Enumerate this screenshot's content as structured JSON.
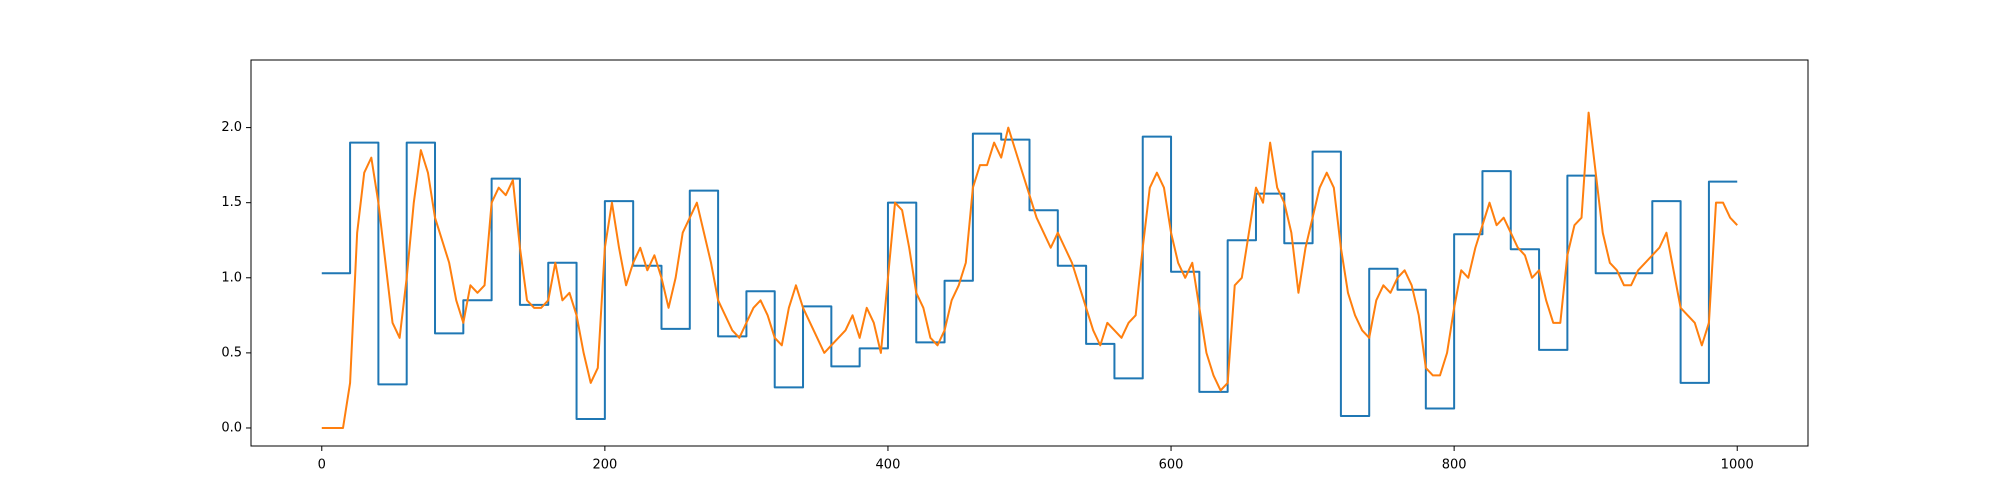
{
  "chart_data": {
    "type": "line",
    "series": [
      {
        "color": "#1f77b4",
        "drawstyle": "steps-post",
        "x": [
          0,
          20,
          40,
          60,
          80,
          100,
          120,
          140,
          160,
          180,
          200,
          220,
          240,
          260,
          280,
          300,
          320,
          340,
          360,
          380,
          400,
          420,
          440,
          460,
          480,
          500,
          520,
          540,
          560,
          580,
          600,
          620,
          640,
          660,
          680,
          700,
          720,
          740,
          760,
          780,
          800,
          820,
          840,
          860,
          880,
          900,
          920,
          940,
          960,
          980,
          1000
        ],
        "values": [
          1.03,
          1.9,
          0.29,
          1.9,
          0.63,
          0.85,
          1.66,
          0.82,
          1.1,
          0.06,
          1.51,
          1.08,
          0.66,
          1.58,
          0.61,
          0.91,
          0.27,
          0.81,
          0.41,
          0.53,
          1.5,
          0.57,
          0.98,
          1.96,
          1.92,
          1.45,
          1.08,
          0.56,
          0.33,
          1.94,
          1.04,
          0.24,
          1.25,
          1.56,
          1.23,
          1.84,
          0.08,
          1.06,
          0.92,
          0.13,
          1.29,
          1.71,
          1.19,
          0.52,
          1.68,
          1.03,
          1.03,
          1.51,
          0.3,
          1.64,
          1.64
        ]
      },
      {
        "color": "#ff7f0e",
        "drawstyle": "default",
        "x": [
          0,
          5,
          10,
          15,
          20,
          25,
          30,
          35,
          40,
          45,
          50,
          55,
          60,
          65,
          70,
          75,
          80,
          85,
          90,
          95,
          100,
          105,
          110,
          115,
          120,
          125,
          130,
          135,
          140,
          145,
          150,
          155,
          160,
          165,
          170,
          175,
          180,
          185,
          190,
          195,
          200,
          205,
          210,
          215,
          220,
          225,
          230,
          235,
          240,
          245,
          250,
          255,
          260,
          265,
          270,
          275,
          280,
          285,
          290,
          295,
          300,
          305,
          310,
          315,
          320,
          325,
          330,
          335,
          340,
          345,
          350,
          355,
          360,
          365,
          370,
          375,
          380,
          385,
          390,
          395,
          400,
          405,
          410,
          415,
          420,
          425,
          430,
          435,
          440,
          445,
          450,
          455,
          460,
          465,
          470,
          475,
          480,
          485,
          490,
          495,
          500,
          505,
          510,
          515,
          520,
          525,
          530,
          535,
          540,
          545,
          550,
          555,
          560,
          565,
          570,
          575,
          580,
          585,
          590,
          595,
          600,
          605,
          610,
          615,
          620,
          625,
          630,
          635,
          640,
          645,
          650,
          655,
          660,
          665,
          670,
          675,
          680,
          685,
          690,
          695,
          700,
          705,
          710,
          715,
          720,
          725,
          730,
          735,
          740,
          745,
          750,
          755,
          760,
          765,
          770,
          775,
          780,
          785,
          790,
          795,
          800,
          805,
          810,
          815,
          820,
          825,
          830,
          835,
          840,
          845,
          850,
          855,
          860,
          865,
          870,
          875,
          880,
          885,
          890,
          895,
          900,
          905,
          910,
          915,
          920,
          925,
          930,
          935,
          940,
          945,
          950,
          955,
          960,
          965,
          970,
          975,
          980,
          985,
          990,
          995,
          1000
        ],
        "values": [
          0,
          0,
          0,
          0,
          0.3,
          1.3,
          1.7,
          1.8,
          1.5,
          1.1,
          0.7,
          0.6,
          1.0,
          1.5,
          1.85,
          1.7,
          1.4,
          1.25,
          1.1,
          0.85,
          0.7,
          0.95,
          0.9,
          0.95,
          1.5,
          1.6,
          1.55,
          1.65,
          1.2,
          0.85,
          0.8,
          0.8,
          0.85,
          1.1,
          0.85,
          0.9,
          0.75,
          0.5,
          0.3,
          0.4,
          1.2,
          1.5,
          1.2,
          0.95,
          1.1,
          1.2,
          1.05,
          1.15,
          1.0,
          0.8,
          1.0,
          1.3,
          1.4,
          1.5,
          1.3,
          1.1,
          0.85,
          0.75,
          0.65,
          0.6,
          0.7,
          0.8,
          0.85,
          0.75,
          0.6,
          0.55,
          0.8,
          0.95,
          0.8,
          0.7,
          0.6,
          0.5,
          0.55,
          0.6,
          0.65,
          0.75,
          0.6,
          0.8,
          0.7,
          0.5,
          1.0,
          1.5,
          1.45,
          1.2,
          0.9,
          0.8,
          0.6,
          0.55,
          0.65,
          0.85,
          0.95,
          1.1,
          1.6,
          1.75,
          1.75,
          1.9,
          1.8,
          2.0,
          1.85,
          1.7,
          1.55,
          1.4,
          1.3,
          1.2,
          1.3,
          1.2,
          1.1,
          0.95,
          0.8,
          0.65,
          0.55,
          0.7,
          0.65,
          0.6,
          0.7,
          0.75,
          1.2,
          1.6,
          1.7,
          1.6,
          1.3,
          1.1,
          1.0,
          1.1,
          0.8,
          0.5,
          0.35,
          0.25,
          0.3,
          0.95,
          1.0,
          1.3,
          1.6,
          1.5,
          1.9,
          1.6,
          1.5,
          1.3,
          0.9,
          1.2,
          1.4,
          1.6,
          1.7,
          1.6,
          1.2,
          0.9,
          0.75,
          0.65,
          0.6,
          0.85,
          0.95,
          0.9,
          1.0,
          1.05,
          0.95,
          0.75,
          0.4,
          0.35,
          0.35,
          0.5,
          0.8,
          1.05,
          1.0,
          1.2,
          1.35,
          1.5,
          1.35,
          1.4,
          1.3,
          1.2,
          1.15,
          1.0,
          1.05,
          0.85,
          0.7,
          0.7,
          1.15,
          1.35,
          1.4,
          2.1,
          1.7,
          1.3,
          1.1,
          1.05,
          0.95,
          0.95,
          1.05,
          1.1,
          1.15,
          1.2,
          1.3,
          1.05,
          0.8,
          0.75,
          0.7,
          0.55,
          0.7,
          1.5,
          1.5,
          1.4,
          1.35
        ]
      }
    ],
    "xlim": [
      -50,
      1050
    ],
    "xticks": [
      0,
      200,
      400,
      600,
      800,
      1000
    ],
    "ylim": [
      -0.12,
      2.45
    ],
    "yticks": [
      {
        "value": 0,
        "label": "0.0"
      },
      0.5,
      {
        "value": 1,
        "label": "1.0"
      },
      1.5,
      {
        "value": 2,
        "label": "2.0"
      }
    ],
    "grid": false
  }
}
